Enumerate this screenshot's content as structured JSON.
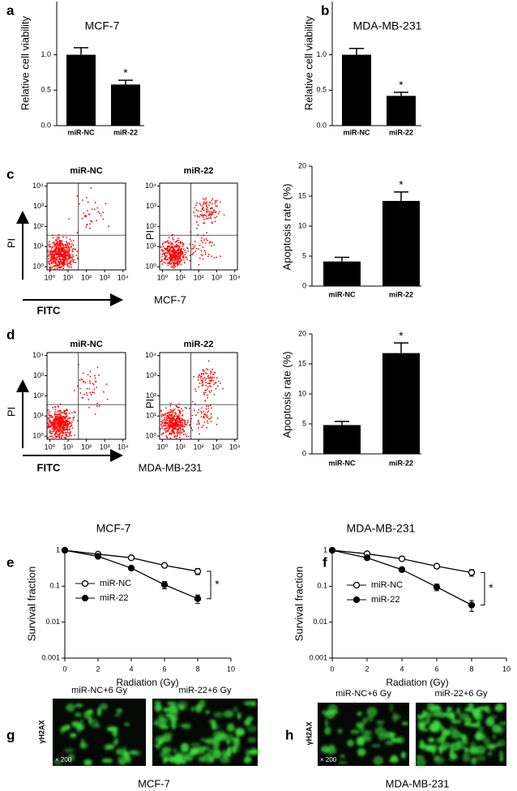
{
  "chart_data": [
    {
      "type": "bar",
      "panel": "a",
      "title": "MCF-7",
      "ylabel": "Relative cell viability",
      "categories": [
        "miR-NC",
        "miR-22"
      ],
      "values": [
        1.0,
        0.58
      ],
      "errors": [
        0.1,
        0.06
      ],
      "color": "#000000",
      "annotation": "*",
      "ylim": [
        0,
        1.75
      ],
      "yticks": [
        {
          "value": 0,
          "label": "0.0"
        },
        {
          "value": 0.5,
          "label": "0.5"
        },
        {
          "value": 1,
          "label": "1.0"
        }
      ]
    },
    {
      "type": "bar",
      "panel": "b",
      "title": "MDA-MB-231",
      "ylabel": "Relative cell viability",
      "categories": [
        "miR-NC",
        "miR-22"
      ],
      "values": [
        1.0,
        0.42
      ],
      "errors": [
        0.09,
        0.05
      ],
      "color": "#000000",
      "annotation": "*",
      "ylim": [
        0,
        1.75
      ],
      "yticks": [
        {
          "value": 0,
          "label": "0.0"
        },
        {
          "value": 0.5,
          "label": "0.5"
        },
        {
          "value": 1,
          "label": "1.0"
        }
      ]
    },
    {
      "type": "flow",
      "panel": "c",
      "plots": [
        {
          "title": "miR-NC"
        },
        {
          "title": "miR-22"
        }
      ],
      "xlabel": "FITC",
      "ylabel": "PI",
      "caption": "MCF-7",
      "color": "#ff0000",
      "log": true,
      "xlim": [
        0.7,
        14000
      ],
      "ylim": [
        0.7,
        14000
      ],
      "xticks": [
        {
          "value": 1,
          "label": "10⁰"
        },
        {
          "value": 10,
          "label": "10¹"
        },
        {
          "value": 100,
          "label": "10²"
        },
        {
          "value": 1000,
          "label": "10³"
        },
        {
          "value": 10000,
          "label": "10⁴"
        }
      ],
      "yticks": [
        {
          "value": 1,
          "label": "10⁰"
        },
        {
          "value": 10,
          "label": "10¹"
        },
        {
          "value": 100,
          "label": "10²"
        },
        {
          "value": 1000,
          "label": "10³"
        },
        {
          "value": 10000,
          "label": "10⁴"
        }
      ]
    },
    {
      "type": "bar",
      "ylabel": "Apoptosis rate (%)",
      "categories": [
        "miR-NC",
        "miR-22"
      ],
      "values": [
        4.1,
        14.2
      ],
      "errors": [
        0.7,
        1.5
      ],
      "color": "#000000",
      "annotation": "*",
      "ylim": [
        0,
        20
      ],
      "yticks": [
        0,
        5,
        10,
        15,
        20
      ]
    },
    {
      "type": "flow",
      "panel": "d",
      "plots": [
        {
          "title": "miR-NC"
        },
        {
          "title": "miR-22"
        }
      ],
      "xlabel": "FITC",
      "ylabel": "PI",
      "caption": "MDA-MB-231",
      "color": "#ff0000",
      "log": true,
      "xlim": [
        0.7,
        14000
      ],
      "ylim": [
        0.7,
        14000
      ],
      "xticks": [
        {
          "value": 1,
          "label": "10⁰"
        },
        {
          "value": 10,
          "label": "10¹"
        },
        {
          "value": 100,
          "label": "10²"
        },
        {
          "value": 1000,
          "label": "10³"
        },
        {
          "value": 10000,
          "label": "10⁴"
        }
      ],
      "yticks": [
        {
          "value": 1,
          "label": "10⁰"
        },
        {
          "value": 10,
          "label": "10¹"
        },
        {
          "value": 100,
          "label": "10²"
        },
        {
          "value": 1000,
          "label": "10³"
        },
        {
          "value": 10000,
          "label": "10⁴"
        }
      ]
    },
    {
      "type": "bar",
      "ylabel": "Apoptosis rate (%)",
      "categories": [
        "miR-NC",
        "miR-22"
      ],
      "values": [
        4.8,
        16.8
      ],
      "errors": [
        0.6,
        1.7
      ],
      "color": "#000000",
      "annotation": "*",
      "ylim": [
        0,
        20
      ],
      "yticks": [
        0,
        5,
        10,
        15,
        20
      ]
    },
    {
      "type": "line",
      "panel": "e",
      "title": "MCF-7",
      "xlabel": "Radiation (Gy)",
      "ylabel": "Survival fraction",
      "x": [
        0,
        2,
        4,
        6,
        8
      ],
      "log": true,
      "annotation": "*",
      "series": [
        {
          "name": "miR-NC",
          "color": "#000000",
          "marker": "open",
          "values": [
            1,
            0.78,
            0.62,
            0.38,
            0.26
          ],
          "errors": [
            0,
            0.04,
            0.05,
            0.05,
            0.05
          ]
        },
        {
          "name": "miR-22",
          "color": "#000000",
          "marker": "filled",
          "values": [
            1,
            0.68,
            0.32,
            0.11,
            0.045
          ],
          "errors": [
            0,
            0.05,
            0.04,
            0.025,
            0.012
          ]
        }
      ],
      "xlim": [
        0,
        10
      ],
      "xticks": [
        0,
        2,
        4,
        6,
        8,
        10
      ],
      "ylim": [
        0.001,
        1
      ],
      "yticks": [
        0.001,
        0.01,
        0.1,
        1
      ]
    },
    {
      "type": "line",
      "panel": "f",
      "title": "MDA-MB-231",
      "xlabel": "Radiation (Gy)",
      "ylabel": "Survival fraction",
      "x": [
        0,
        2,
        4,
        6,
        8
      ],
      "log": true,
      "annotation": "*",
      "series": [
        {
          "name": "miR-NC",
          "color": "#000000",
          "marker": "open",
          "values": [
            1,
            0.8,
            0.58,
            0.36,
            0.24
          ],
          "errors": [
            0,
            0.04,
            0.05,
            0.05,
            0.05
          ]
        },
        {
          "name": "miR-22",
          "color": "#000000",
          "marker": "filled",
          "values": [
            1,
            0.62,
            0.29,
            0.095,
            0.03
          ],
          "errors": [
            0,
            0.05,
            0.04,
            0.02,
            0.01
          ]
        }
      ],
      "xlim": [
        0,
        10
      ],
      "xticks": [
        0,
        2,
        4,
        6,
        8,
        10
      ],
      "ylim": [
        0.001,
        1
      ],
      "yticks": [
        0.001,
        0.01,
        0.1,
        1
      ]
    },
    {
      "type": "micrograph",
      "panel": "g",
      "images": [
        {
          "title": "miR-NC+6 Gy"
        },
        {
          "title": "miR-22+6 Gy"
        }
      ],
      "ylabel": "γH2AX",
      "magnification": "× 200",
      "caption": "MCF-7",
      "color": "#3ce03c"
    },
    {
      "type": "micrograph",
      "panel": "h",
      "images": [
        {
          "title": "miR-NC+6 Gy"
        },
        {
          "title": "miR-22+6 Gy"
        }
      ],
      "ylabel": "γH2AX",
      "magnification": "× 200",
      "caption": "MDA-MB-231",
      "color": "#3ce03c"
    }
  ]
}
